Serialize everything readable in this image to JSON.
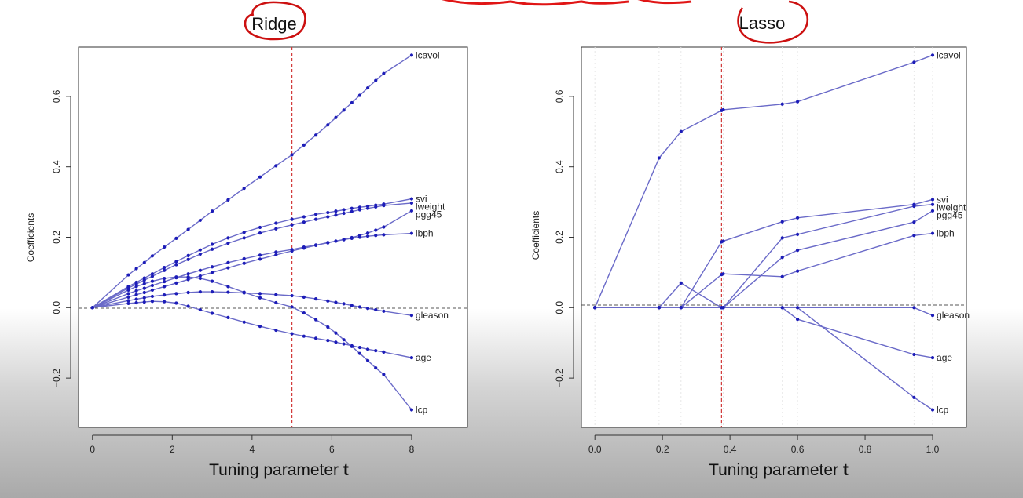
{
  "chart_data": [
    {
      "type": "line",
      "title": "Ridge",
      "xlabel": "Tuning parameter",
      "xlabel_bold": "t",
      "ylabel": "Coefficients",
      "xlim": [
        -0.35,
        9.4
      ],
      "ylim": [
        -0.34,
        0.74
      ],
      "xticks": [
        0,
        2,
        4,
        6,
        8
      ],
      "xtick_labels": [
        "0",
        "2",
        "4",
        "6",
        "8"
      ],
      "yticks": [
        -0.2,
        0.0,
        0.2,
        0.4,
        0.6
      ],
      "ytick_labels": [
        "−0.2",
        "0.0",
        "0.2",
        "0.4",
        "0.6"
      ],
      "vline": 5.0,
      "hline": 0.0,
      "x": [
        0,
        0.9,
        1.1,
        1.3,
        1.5,
        1.8,
        2.1,
        2.4,
        2.7,
        3.0,
        3.4,
        3.8,
        4.2,
        4.6,
        5.0,
        5.3,
        5.6,
        5.9,
        6.1,
        6.3,
        6.5,
        6.7,
        6.9,
        7.1,
        7.3,
        8.0
      ],
      "series": [
        {
          "name": "lcavol",
          "values": [
            0.0,
            0.093,
            0.111,
            0.128,
            0.147,
            0.172,
            0.197,
            0.222,
            0.248,
            0.274,
            0.306,
            0.339,
            0.371,
            0.403,
            0.434,
            0.462,
            0.49,
            0.519,
            0.54,
            0.561,
            0.582,
            0.603,
            0.624,
            0.645,
            0.665,
            0.717
          ]
        },
        {
          "name": "svi",
          "values": [
            0.0,
            0.06,
            0.072,
            0.084,
            0.096,
            0.114,
            0.131,
            0.148,
            0.164,
            0.18,
            0.198,
            0.214,
            0.228,
            0.24,
            0.251,
            0.258,
            0.265,
            0.27,
            0.274,
            0.278,
            0.282,
            0.285,
            0.288,
            0.291,
            0.294,
            0.309
          ]
        },
        {
          "name": "lweight",
          "values": [
            0.0,
            0.056,
            0.067,
            0.078,
            0.089,
            0.106,
            0.122,
            0.137,
            0.152,
            0.166,
            0.183,
            0.198,
            0.212,
            0.224,
            0.235,
            0.243,
            0.251,
            0.258,
            0.263,
            0.268,
            0.273,
            0.278,
            0.282,
            0.286,
            0.29,
            0.297
          ]
        },
        {
          "name": "pgg45",
          "values": [
            0.0,
            0.04,
            0.048,
            0.055,
            0.063,
            0.074,
            0.085,
            0.096,
            0.106,
            0.116,
            0.128,
            0.139,
            0.149,
            0.158,
            0.165,
            0.172,
            0.178,
            0.184,
            0.189,
            0.194,
            0.199,
            0.205,
            0.212,
            0.22,
            0.229,
            0.275
          ]
        },
        {
          "name": "lbph",
          "values": [
            0.0,
            0.03,
            0.037,
            0.043,
            0.05,
            0.06,
            0.07,
            0.08,
            0.09,
            0.1,
            0.113,
            0.126,
            0.138,
            0.15,
            0.161,
            0.169,
            0.177,
            0.185,
            0.189,
            0.193,
            0.197,
            0.2,
            0.203,
            0.205,
            0.207,
            0.211
          ]
        },
        {
          "name": "gleason",
          "values": [
            0.0,
            0.02,
            0.024,
            0.028,
            0.032,
            0.036,
            0.04,
            0.043,
            0.045,
            0.045,
            0.044,
            0.042,
            0.04,
            0.037,
            0.034,
            0.03,
            0.025,
            0.019,
            0.015,
            0.011,
            0.006,
            0.002,
            -0.002,
            -0.006,
            -0.01,
            -0.022
          ]
        },
        {
          "name": "age",
          "values": [
            0.0,
            0.012,
            0.014,
            0.016,
            0.018,
            0.017,
            0.013,
            0.004,
            -0.006,
            -0.016,
            -0.028,
            -0.041,
            -0.053,
            -0.064,
            -0.074,
            -0.081,
            -0.087,
            -0.093,
            -0.098,
            -0.103,
            -0.108,
            -0.113,
            -0.118,
            -0.122,
            -0.126,
            -0.142
          ]
        },
        {
          "name": "lcp",
          "values": [
            0.0,
            0.05,
            0.06,
            0.068,
            0.075,
            0.083,
            0.087,
            0.087,
            0.083,
            0.075,
            0.06,
            0.044,
            0.028,
            0.014,
            0.002,
            -0.015,
            -0.034,
            -0.055,
            -0.072,
            -0.091,
            -0.11,
            -0.13,
            -0.15,
            -0.171,
            -0.19,
            -0.29
          ]
        }
      ]
    },
    {
      "type": "line",
      "title": "Lasso",
      "xlabel": "Tuning parameter",
      "xlabel_bold": "t",
      "ylabel": "Coefficients",
      "xlim": [
        -0.04,
        1.1
      ],
      "ylim": [
        -0.34,
        0.74
      ],
      "xticks": [
        0.0,
        0.2,
        0.4,
        0.6,
        0.8,
        1.0
      ],
      "xtick_labels": [
        "0.0",
        "0.2",
        "0.4",
        "0.6",
        "0.8",
        "1.0"
      ],
      "yticks": [
        -0.2,
        0.0,
        0.2,
        0.4,
        0.6
      ],
      "ytick_labels": [
        "−0.2",
        "0.0",
        "0.2",
        "0.4",
        "0.6"
      ],
      "vline": 0.375,
      "hline": 0.0,
      "x": [
        0.0,
        0.19,
        0.255,
        0.375,
        0.38,
        0.555,
        0.6,
        0.945,
        1.0
      ],
      "series": [
        {
          "name": "lcavol",
          "values": [
            0.0,
            0.425,
            0.5,
            0.56,
            0.562,
            0.578,
            0.585,
            0.697,
            0.717
          ]
        },
        {
          "name": "svi",
          "values": [
            0.0,
            0.0,
            0.0,
            0.187,
            0.189,
            0.244,
            0.255,
            0.293,
            0.307
          ]
        },
        {
          "name": "lweight",
          "values": [
            0.0,
            0.0,
            0.07,
            0.0,
            0.0,
            0.198,
            0.208,
            0.288,
            0.293
          ]
        },
        {
          "name": "pgg45",
          "values": [
            0.0,
            0.0,
            0.0,
            0.0,
            0.0,
            0.143,
            0.163,
            0.243,
            0.275
          ]
        },
        {
          "name": "lbph",
          "values": [
            0.0,
            0.0,
            0.0,
            0.094,
            0.096,
            0.088,
            0.104,
            0.205,
            0.211
          ]
        },
        {
          "name": "gleason",
          "values": [
            0.0,
            0.0,
            0.0,
            0.0,
            0.0,
            0.0,
            0.0,
            0.0,
            -0.022
          ]
        },
        {
          "name": "age",
          "values": [
            0.0,
            0.0,
            0.0,
            0.0,
            0.0,
            0.0,
            -0.033,
            -0.133,
            -0.142
          ]
        },
        {
          "name": "lcp",
          "values": [
            0.0,
            0.0,
            0.0,
            0.0,
            0.0,
            0.0,
            0.0,
            -0.255,
            -0.29
          ]
        }
      ]
    }
  ],
  "colors": {
    "line": "#6a6ac8",
    "point": "#1c1cb8",
    "vline": "#d23a3a",
    "hline": "#555555",
    "circle": "#cc1010",
    "underline": "#e01515"
  }
}
